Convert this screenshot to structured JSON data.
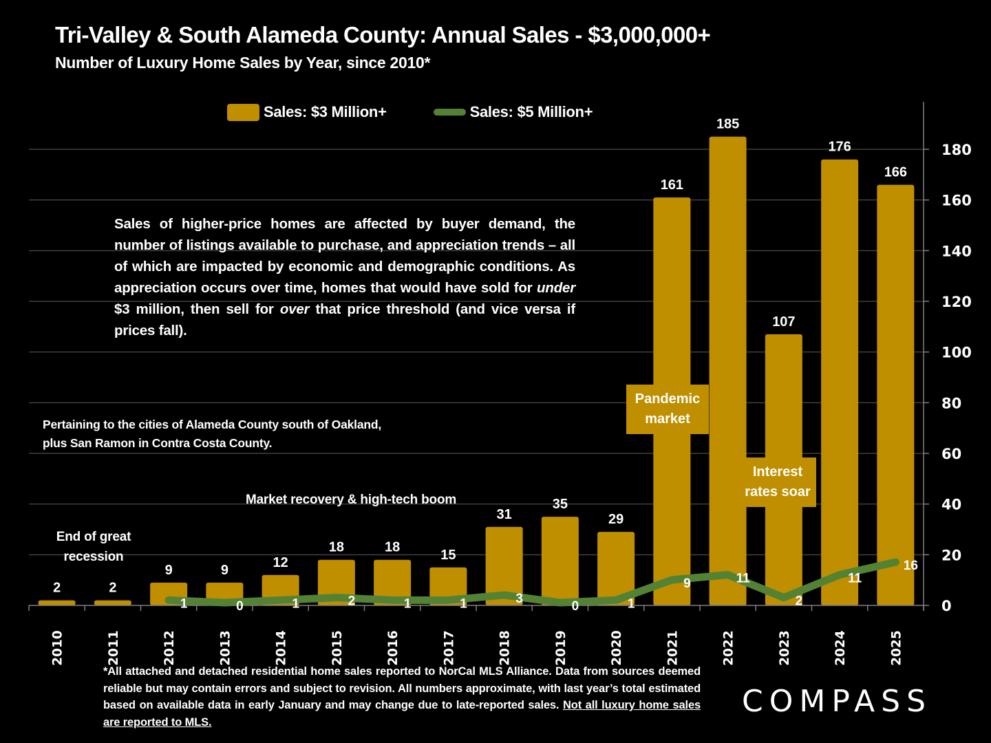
{
  "header": {
    "title": "Tri-Valley & South Alameda County:  Annual Sales - $3,000,000+",
    "subtitle": "Number of Luxury Home Sales by Year, since 2010*"
  },
  "legend": {
    "bar_label": "Sales: $3 Million+",
    "line_label": "Sales:  $5 Million+"
  },
  "annotations": {
    "explanation_parts": [
      "Sales of higher-price homes are affected by buyer demand, the number of listings available to purchase, and appreciation trends – all of which are impacted by economic and demographic conditions. As appreciation occurs over time, homes that would have sold for ",
      "under",
      " $3 million, then sell for ",
      "over",
      " that price threshold (and vice versa if prices fall)."
    ],
    "region_note": "Pertaining to the cities of Alameda County south of Oakland, plus San Ramon in Contra Costa County.",
    "end_recession": "End of great recession",
    "market_recovery": "Market recovery & high-tech boom",
    "pandemic": "Pandemic market",
    "interest_rates": "Interest rates soar"
  },
  "footnote": {
    "text": "*All attached and detached residential home sales reported to NorCal MLS Alliance. Data from sources deemed reliable but may contain errors and subject to revision. All numbers approximate, with last year’s total estimated based on available data in early January and may change due to late-reported sales. ",
    "underlined": "Not all luxury home sales are reported to MLS."
  },
  "branding": {
    "logo": "COMPASS"
  },
  "colors": {
    "bar": "#BF8F00",
    "line": "#548235",
    "grid": "#404040",
    "axis": "#808080",
    "text": "#FFFFFF",
    "background": "#000000"
  },
  "chart_data": {
    "type": "bar",
    "title": "Tri-Valley & South Alameda County:  Annual Sales - $3,000,000+",
    "subtitle": "Number of Luxury Home Sales by Year, since 2010*",
    "xlabel": "",
    "ylabel": "",
    "categories": [
      "2010",
      "2011",
      "2012",
      "2013",
      "2014",
      "2015",
      "2016",
      "2017",
      "2018",
      "2019",
      "2020",
      "2021",
      "2022",
      "2023",
      "2024",
      "2025"
    ],
    "series": [
      {
        "name": "Sales: $3 Million+",
        "type": "bar",
        "values": [
          2,
          2,
          9,
          9,
          12,
          18,
          18,
          15,
          31,
          35,
          29,
          161,
          185,
          107,
          176,
          166
        ]
      },
      {
        "name": "Sales:  $5 Million+",
        "type": "line",
        "values": [
          null,
          null,
          1,
          0,
          1,
          2,
          1,
          1,
          3,
          0,
          1,
          9,
          11,
          2,
          11,
          16
        ]
      }
    ],
    "ylim": [
      0,
      190
    ],
    "yticks": [
      0,
      20,
      40,
      60,
      80,
      100,
      120,
      140,
      160,
      180
    ],
    "y_axis_side": "right",
    "grid": true,
    "legend_position": "top",
    "x_tick_rotation": -90
  }
}
